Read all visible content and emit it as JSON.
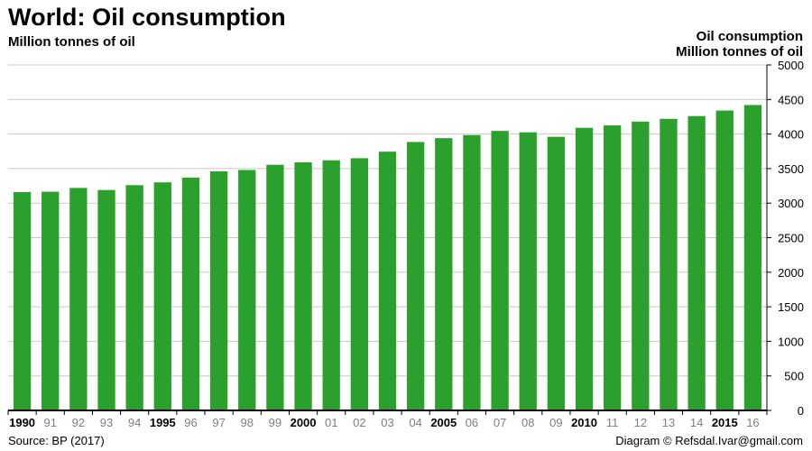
{
  "header": {
    "title": "World: Oil consumption",
    "subtitle": "Million tonnes of oil",
    "right_label_line1": "Oil consumption",
    "right_label_line2": "Million tonnes of oil"
  },
  "footer": {
    "source": "Source: BP (2017)",
    "credit": "Diagram © Refsdal.Ivar@gmail.com"
  },
  "colors": {
    "bar": "#2ca02c",
    "grid": "#c8c8c8",
    "axis": "#000000",
    "tick_label_minor": "#7f7f7f",
    "tick_label_major": "#000000"
  },
  "chart_data": {
    "type": "bar",
    "title": "World: Oil consumption",
    "ylabel": "Million tonnes of oil",
    "categories": [
      "1990",
      "91",
      "92",
      "93",
      "94",
      "1995",
      "96",
      "97",
      "98",
      "99",
      "2000",
      "01",
      "02",
      "03",
      "04",
      "2005",
      "06",
      "07",
      "08",
      "09",
      "2010",
      "11",
      "12",
      "13",
      "14",
      "2015",
      "16"
    ],
    "bold_categories": [
      "1990",
      "1995",
      "2000",
      "2005",
      "2010",
      "2015"
    ],
    "values": [
      3160,
      3165,
      3220,
      3190,
      3260,
      3300,
      3370,
      3460,
      3480,
      3555,
      3590,
      3620,
      3650,
      3745,
      3885,
      3940,
      3985,
      4045,
      4025,
      3960,
      4090,
      4125,
      4180,
      4220,
      4260,
      4340,
      4420
    ],
    "ylim": [
      0,
      5000
    ],
    "yticks": [
      0,
      500,
      1000,
      1500,
      2000,
      2500,
      3000,
      3500,
      4000,
      4500,
      5000
    ],
    "y_axis_side": "right",
    "grid": true,
    "legend": "none"
  }
}
